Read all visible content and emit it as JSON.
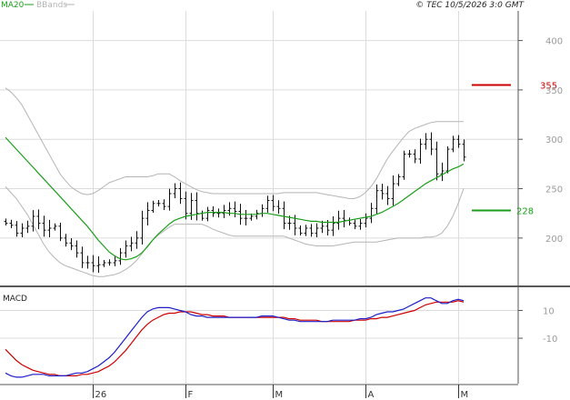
{
  "header": {
    "legend_ma20": "MA20",
    "legend_bbands": "BBands",
    "copyright": "© TEC 10/5/2026 3:0 GMT",
    "ma20_color": "#1a9e1a",
    "bbands_color": "#b5b5b5"
  },
  "levels": {
    "resistance_label": "355",
    "resistance_value": 355,
    "resistance_color": "#cc0000",
    "support_label": "228",
    "support_value": 228,
    "support_color": "#1a9e1a"
  },
  "macd_panel": {
    "title": "MACD",
    "macd_color": "#1e1ec8",
    "signal_color": "#cc0000"
  },
  "chart_data": [
    {
      "type": "ohlc",
      "title": "",
      "y_ticks": [
        "400",
        "350",
        "300",
        "250",
        "200"
      ],
      "y_tick_values": [
        400,
        350,
        300,
        250,
        200
      ],
      "ylim": [
        152,
        430
      ],
      "x_tick_labels": [
        "26",
        "F",
        "M",
        "A",
        "M"
      ],
      "x_tick_index": [
        16,
        33,
        49,
        66,
        83
      ],
      "grid": true,
      "close": [
        215,
        213,
        205,
        210,
        212,
        222,
        215,
        208,
        210,
        212,
        200,
        195,
        192,
        185,
        175,
        175,
        172,
        173,
        175,
        175,
        177,
        185,
        192,
        195,
        200,
        220,
        228,
        235,
        235,
        232,
        245,
        250,
        240,
        225,
        238,
        225,
        220,
        228,
        225,
        225,
        228,
        230,
        227,
        220,
        220,
        222,
        225,
        230,
        238,
        232,
        230,
        215,
        215,
        210,
        205,
        210,
        205,
        210,
        212,
        208,
        215,
        220,
        218,
        215,
        212,
        215,
        220,
        230,
        248,
        245,
        240,
        255,
        262,
        285,
        285,
        280,
        295,
        300,
        290,
        265,
        268,
        290,
        300,
        295,
        282
      ],
      "series": [
        {
          "name": "MA20",
          "values": [
            302,
            296,
            290,
            284,
            278,
            272,
            266,
            260,
            254,
            248,
            242,
            236,
            230,
            224,
            218,
            212,
            205,
            198,
            192,
            186,
            182,
            179,
            178,
            179,
            181,
            185,
            191,
            198,
            204,
            209,
            214,
            218,
            220,
            222,
            223,
            224,
            225,
            226,
            226,
            226,
            226,
            225,
            225,
            224,
            224,
            224,
            224,
            225,
            225,
            224,
            223,
            222,
            221,
            220,
            219,
            218,
            217,
            217,
            216,
            216,
            216,
            216,
            217,
            218,
            219,
            220,
            221,
            222,
            224,
            226,
            229,
            232,
            235,
            239,
            243,
            247,
            251,
            255,
            258,
            261,
            264,
            267,
            270,
            272,
            275
          ]
        },
        {
          "name": "BBands",
          "values": [
            352,
            348,
            342,
            335,
            325,
            315,
            305,
            295,
            285,
            275,
            265,
            258,
            252,
            248,
            245,
            244,
            245,
            248,
            252,
            256,
            258,
            260,
            262,
            262,
            262,
            262,
            262,
            263,
            265,
            265,
            265,
            262,
            258,
            255,
            252,
            249,
            247,
            246,
            245,
            245,
            245,
            245,
            245,
            245,
            245,
            245,
            245,
            245,
            245,
            245,
            245,
            246,
            246,
            246,
            246,
            246,
            246,
            246,
            245,
            244,
            243,
            242,
            241,
            240,
            240,
            242,
            246,
            252,
            260,
            270,
            280,
            288,
            295,
            302,
            308,
            311,
            313,
            315,
            317,
            318,
            318,
            318,
            318,
            318,
            318
          ]
        },
        {
          "name": "BBands lower",
          "values": [
            252,
            246,
            240,
            232,
            224,
            214,
            204,
            194,
            186,
            180,
            175,
            172,
            170,
            168,
            166,
            164,
            162,
            161,
            161,
            162,
            163,
            165,
            168,
            172,
            177,
            184,
            192,
            198,
            203,
            207,
            211,
            214,
            214,
            214,
            214,
            214,
            214,
            212,
            209,
            207,
            205,
            203,
            202,
            202,
            202,
            202,
            202,
            202,
            202,
            202,
            202,
            202,
            200,
            198,
            196,
            194,
            193,
            192,
            192,
            192,
            192,
            193,
            194,
            195,
            196,
            196,
            196,
            196,
            196,
            197,
            198,
            199,
            200,
            200,
            200,
            200,
            200,
            201,
            201,
            202,
            205,
            212,
            222,
            235,
            250
          ]
        }
      ]
    },
    {
      "type": "line",
      "title": "MACD",
      "y_ticks": [
        "10",
        "-10"
      ],
      "y_tick_values": [
        10,
        -10
      ],
      "ylim": [
        -42,
        26
      ],
      "grid": true,
      "series": [
        {
          "name": "MACD",
          "values": [
            -35,
            -37,
            -38,
            -38,
            -37,
            -36,
            -36,
            -36,
            -37,
            -37,
            -37,
            -37,
            -36,
            -35,
            -35,
            -34,
            -32,
            -30,
            -27,
            -24,
            -20,
            -15,
            -10,
            -5,
            0,
            5,
            9,
            11,
            12,
            12,
            12,
            11,
            10,
            9,
            7,
            6,
            6,
            5,
            5,
            5,
            5,
            5,
            5,
            5,
            5,
            5,
            5,
            6,
            6,
            6,
            5,
            4,
            3,
            3,
            2,
            2,
            2,
            2,
            2,
            2,
            3,
            3,
            3,
            3,
            3,
            4,
            4,
            5,
            7,
            8,
            9,
            9,
            10,
            11,
            13,
            15,
            17,
            19,
            19,
            17,
            15,
            15,
            17,
            18,
            17
          ]
        },
        {
          "name": "Signal",
          "values": [
            -18,
            -22,
            -26,
            -29,
            -31,
            -33,
            -34,
            -35,
            -36,
            -36,
            -37,
            -37,
            -37,
            -37,
            -36,
            -36,
            -35,
            -34,
            -32,
            -30,
            -27,
            -23,
            -19,
            -14,
            -9,
            -4,
            0,
            3,
            5,
            7,
            8,
            8,
            9,
            9,
            9,
            8,
            7,
            7,
            6,
            6,
            6,
            5,
            5,
            5,
            5,
            5,
            5,
            5,
            5,
            5,
            5,
            5,
            4,
            4,
            3,
            3,
            3,
            3,
            2,
            2,
            2,
            2,
            2,
            2,
            3,
            3,
            3,
            4,
            4,
            5,
            5,
            6,
            7,
            8,
            9,
            10,
            12,
            14,
            15,
            16,
            16,
            16,
            16,
            17,
            16
          ]
        }
      ]
    }
  ]
}
